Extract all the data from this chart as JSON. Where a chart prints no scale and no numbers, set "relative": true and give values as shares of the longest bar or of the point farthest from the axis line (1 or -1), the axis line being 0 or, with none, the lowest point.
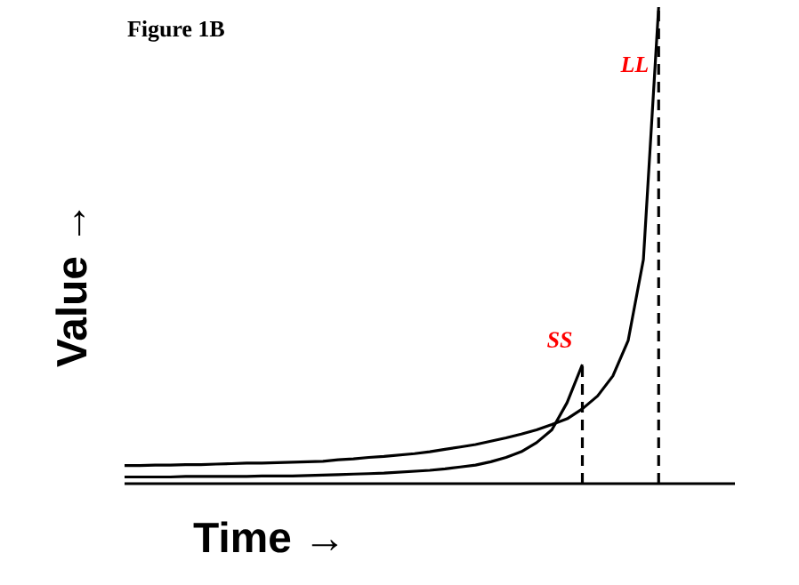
{
  "chart_data": {
    "type": "line",
    "title": "Figure 1B",
    "xlabel": "Time →",
    "ylabel": "Value →",
    "relative": true,
    "tick_labels": false,
    "marker": "none",
    "line_style": "solid",
    "categories": [
      null,
      null,
      null,
      null,
      null,
      null,
      null,
      null,
      null,
      null,
      null,
      null,
      null,
      null,
      null,
      null,
      null,
      null,
      null,
      null,
      null,
      null,
      null,
      null,
      null,
      null,
      null,
      null,
      null,
      null,
      null,
      null,
      null,
      null,
      null,
      null,
      null,
      null,
      null,
      null,
      null
    ],
    "series": [
      {
        "name": "SS",
        "color": "#000000",
        "values": [
          0.014,
          0.014,
          0.014,
          0.014,
          0.015,
          0.015,
          0.015,
          0.015,
          0.015,
          0.016,
          0.016,
          0.016,
          0.017,
          0.018,
          0.019,
          0.02,
          0.021,
          0.022,
          0.024,
          0.026,
          0.028,
          0.031,
          0.035,
          0.039,
          0.046,
          0.055,
          0.067,
          0.086,
          0.113,
          0.17,
          0.25,
          null,
          null,
          null,
          null,
          null,
          null,
          null,
          null,
          null,
          null
        ]
      },
      {
        "name": "LL",
        "color": "#000000",
        "values": [
          0.038,
          0.038,
          0.039,
          0.039,
          0.04,
          0.04,
          0.041,
          0.042,
          0.043,
          0.043,
          0.044,
          0.045,
          0.046,
          0.047,
          0.05,
          0.052,
          0.055,
          0.057,
          0.06,
          0.063,
          0.067,
          0.072,
          0.077,
          0.082,
          0.089,
          0.096,
          0.104,
          0.113,
          0.124,
          0.136,
          0.157,
          0.184,
          0.226,
          0.3,
          0.47,
          1,
          null,
          null,
          null,
          null,
          null
        ]
      }
    ]
  }
}
